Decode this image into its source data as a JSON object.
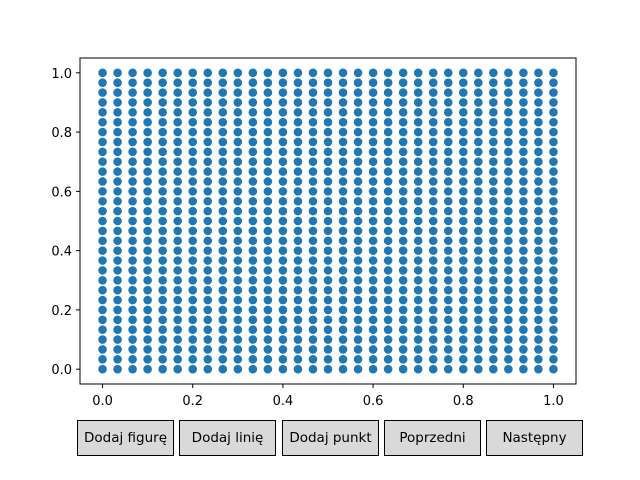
{
  "chart_data": {
    "type": "scatter",
    "title": "",
    "xlabel": "",
    "ylabel": "",
    "xlim": [
      -0.05,
      1.05
    ],
    "ylim": [
      -0.05,
      1.05
    ],
    "grid": false,
    "x_ticks": [
      "0.0",
      "0.2",
      "0.4",
      "0.6",
      "0.8",
      "1.0"
    ],
    "y_ticks": [
      "0.0",
      "0.2",
      "0.4",
      "0.6",
      "0.8",
      "1.0"
    ],
    "points": {
      "description_grid": true,
      "x_start": 0.0,
      "x_end": 1.0,
      "x_count": 31,
      "y_start": 0.0,
      "y_end": 1.0,
      "y_count": 31
    },
    "color": "#1f77b4"
  },
  "buttons": {
    "add_figure": "Dodaj figurę",
    "add_line": "Dodaj linię",
    "add_point": "Dodaj punkt",
    "previous": "Poprzedni",
    "next": "Następny"
  },
  "colors": {
    "button_bg": "#d9d9d9",
    "marker": "#1f77b4"
  }
}
